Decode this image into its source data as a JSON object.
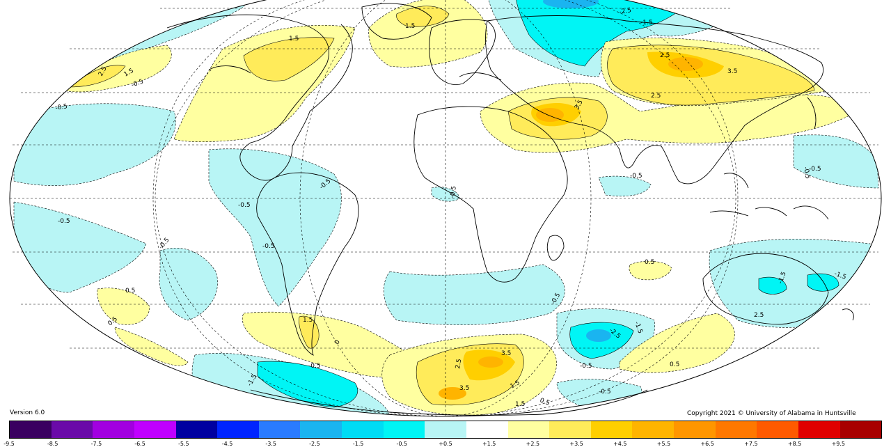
{
  "footer": {
    "version": "Version 6.0",
    "copyright": "Copyright 2021 © University of Alabama in Huntsville"
  },
  "colorbar": {
    "tick_labels": [
      "-9.5",
      "-8.5",
      "-7.5",
      "-6.5",
      "-5.5",
      "-4.5",
      "-3.5",
      "-2.5",
      "-1.5",
      "-0.5",
      "+0.5",
      "+1.5",
      "+2.5",
      "+3.5",
      "+4.5",
      "+5.5",
      "+6.5",
      "+7.5",
      "+8.5",
      "+9.5"
    ],
    "colors": [
      "#3a0060",
      "#6a0aa8",
      "#a200e0",
      "#c000ff",
      "#0000a0",
      "#0024ff",
      "#2a7bff",
      "#1ab4f0",
      "#00dcf5",
      "#00f5f5",
      "#b8f5f5",
      "#ffffff",
      "#ffffa0",
      "#ffeb5a",
      "#ffcf00",
      "#ffb400",
      "#ff9600",
      "#ff7800",
      "#ff5a00",
      "#e00000",
      "#a80000"
    ]
  },
  "map": {
    "projection": "Mollweide",
    "contour_labels": {
      "arctic_top": "-2.5",
      "arctic_right": "-1.5",
      "greenland": "1.5",
      "n_atlantic": "1.5",
      "n_pacific_25": "2.5",
      "n_pacific_15": "1.5",
      "n_pacific_05": "-0.5",
      "pacific_west": "-0.5",
      "siberia_25": "2.5",
      "siberia_35": "3.5",
      "asia_25": "2.5",
      "sahara_35": "3.5",
      "sahara_25": "2.5",
      "india": "-0.5",
      "indian_ocean": "-0.5",
      "amazon": "-0.5",
      "amazon2": "-0.5",
      "south_am": "-0.5",
      "w_pacific": "-0.5",
      "e_pacific": "-0.5",
      "africa": "-0.5",
      "s_pacific_05": "0.5",
      "s_pacific_05b": "0.5",
      "patagonia": "1.5",
      "patagonia2": "0",
      "s_atlantic": "-0.5",
      "south_ocean_35": "3.5",
      "south_ocean_25": "2.5",
      "south_ocean_15": "1.5",
      "antarctic_35": "3.5",
      "antarctic_15": "1.5",
      "antarctic_05": "0.5",
      "s_indian_25": "-2.5",
      "s_indian_15": "-1.5",
      "s_indian_05": "-0.5",
      "australia": "-1.5",
      "australia2": "-1.5",
      "s_indian_pos": "0.5",
      "aus_05": "0.5",
      "s_pac_neg": "-0.5",
      "s_pac_neg2": "-0.5",
      "se_pac": "-1.5",
      "indian_top": "-0.5"
    }
  }
}
